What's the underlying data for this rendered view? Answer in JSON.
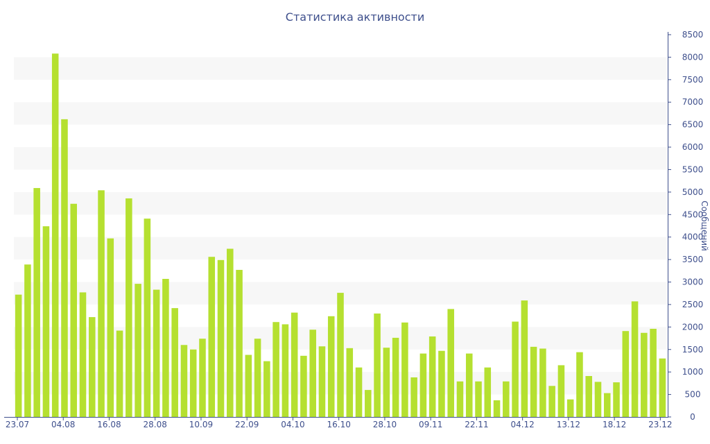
{
  "chart_data": {
    "type": "bar",
    "title": "Статистика активности",
    "xlabel": "",
    "ylabel": "Сообщений",
    "ylim": [
      0,
      8500
    ],
    "y_ticks": [
      0,
      500,
      1000,
      1500,
      2000,
      2500,
      3000,
      3500,
      4000,
      4500,
      5000,
      5500,
      6000,
      6500,
      7000,
      7500,
      8000,
      8500
    ],
    "y_axis_side": "right",
    "grid": "alternating horizontal bands",
    "legend": "none",
    "x_tick_labels": [
      "23.07",
      "04.08",
      "16.08",
      "28.08",
      "10.09",
      "22.09",
      "04.10",
      "16.10",
      "28.10",
      "09.11",
      "22.11",
      "04.12",
      "13.12",
      "18.12",
      "23.12"
    ],
    "bar_color": "#b5e030",
    "series": [
      {
        "values": [
          2720,
          3390,
          5090,
          4240,
          8080,
          6620,
          4740,
          2770,
          2220,
          5040,
          3970,
          1920,
          4860,
          2960,
          4410,
          2830,
          3070,
          2420,
          1600,
          1500,
          1740,
          3560,
          3490,
          3740,
          3270,
          1380,
          1740,
          1240,
          2110,
          2060,
          2320,
          1360,
          1940,
          1570,
          2240,
          2760,
          1530,
          1100,
          600,
          2300,
          1540,
          1760,
          2100,
          880,
          1410,
          1790,
          1470,
          2400,
          790,
          1410,
          790,
          1100,
          370,
          790,
          2120,
          2590,
          1560,
          1520,
          690,
          1150,
          390,
          1440,
          910,
          780,
          530,
          770,
          1910,
          2570,
          1870,
          1960,
          1300
        ]
      }
    ]
  }
}
